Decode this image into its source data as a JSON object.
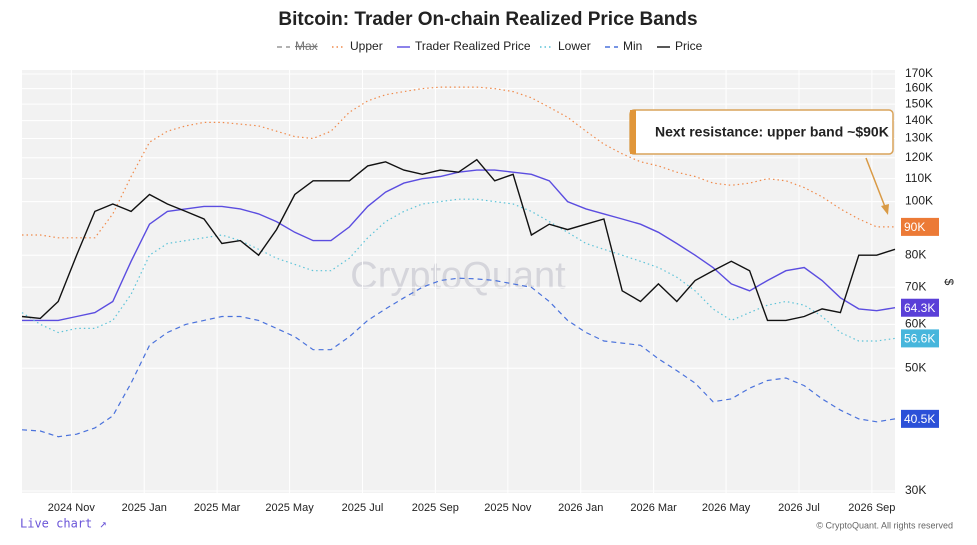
{
  "chart_data": {
    "type": "line",
    "title": "Bitcoin: Trader On-chain Realized Price Bands",
    "watermark": "CryptoQuant",
    "y_axis_label": "$",
    "log_y": true,
    "grid": true,
    "annotation": "Next resistance: upper band ~$90K",
    "footer_link": "Live chart ↗",
    "copyright": "© CryptoQuant. All rights reserved",
    "xlim": [
      2024.72,
      2026.72
    ],
    "xticks": [
      {
        "value": 2024.833,
        "label": "2024 Nov"
      },
      {
        "value": 2025.0,
        "label": "2025 Jan"
      },
      {
        "value": 2025.167,
        "label": "2025 Mar"
      },
      {
        "value": 2025.333,
        "label": "2025 May"
      },
      {
        "value": 2025.5,
        "label": "2025 Jul"
      },
      {
        "value": 2025.667,
        "label": "2025 Sep"
      },
      {
        "value": 2025.833,
        "label": "2025 Nov"
      },
      {
        "value": 2026.0,
        "label": "2026 Jan"
      },
      {
        "value": 2026.167,
        "label": "2026 Mar"
      },
      {
        "value": 2026.333,
        "label": "2026 May"
      },
      {
        "value": 2026.5,
        "label": "2026 Jul"
      },
      {
        "value": 2026.667,
        "label": "2026 Sep"
      }
    ],
    "ylim": [
      30000,
      170000
    ],
    "yticks": [
      {
        "value": 30000,
        "label": "30K"
      },
      {
        "value": 50000,
        "label": "50K"
      },
      {
        "value": 60000,
        "label": "60K"
      },
      {
        "value": 70000,
        "label": "70K"
      },
      {
        "value": 80000,
        "label": "80K"
      },
      {
        "value": 100000,
        "label": "100K"
      },
      {
        "value": 110000,
        "label": "110K"
      },
      {
        "value": 120000,
        "label": "120K"
      },
      {
        "value": 130000,
        "label": "130K"
      },
      {
        "value": 140000,
        "label": "140K"
      },
      {
        "value": 150000,
        "label": "150K"
      },
      {
        "value": 160000,
        "label": "160K"
      },
      {
        "value": 170000,
        "label": "170K"
      }
    ],
    "x": [
      2024.72,
      2024.762,
      2024.803,
      2024.845,
      2024.887,
      2024.928,
      2024.97,
      2025.012,
      2025.053,
      2025.095,
      2025.137,
      2025.178,
      2025.22,
      2025.262,
      2025.303,
      2025.345,
      2025.387,
      2025.428,
      2025.47,
      2025.512,
      2025.553,
      2025.595,
      2025.637,
      2025.678,
      2025.72,
      2025.762,
      2025.803,
      2025.845,
      2025.887,
      2025.928,
      2025.97,
      2026.012,
      2026.053,
      2026.095,
      2026.137,
      2026.178,
      2026.22,
      2026.262,
      2026.303,
      2026.345,
      2026.387,
      2026.428,
      2026.47,
      2026.512,
      2026.553,
      2026.595,
      2026.637,
      2026.678,
      2026.72
    ],
    "series": [
      {
        "name": "Max",
        "color": "#999999",
        "style": "dashed",
        "hidden": true
      },
      {
        "name": "Upper",
        "color": "#f08a4b",
        "style": "dotted",
        "end_label": "90K",
        "badge_color": "#ec7a36",
        "values": [
          87000,
          87000,
          86000,
          86000,
          86000,
          95000,
          111000,
          128000,
          134000,
          137000,
          139000,
          139000,
          138000,
          137000,
          134000,
          131000,
          130000,
          134000,
          145000,
          152000,
          156000,
          158000,
          160000,
          161000,
          161000,
          161000,
          160000,
          158000,
          154000,
          148000,
          142000,
          134000,
          127000,
          122000,
          118000,
          116000,
          113000,
          111000,
          108000,
          107000,
          108000,
          110000,
          109000,
          106000,
          102000,
          97000,
          93000,
          90000,
          90000
        ]
      },
      {
        "name": "Trader Realized Price",
        "color": "#5b4de0",
        "style": "solid",
        "end_label": "64.3K",
        "badge_color": "#5a3fd8",
        "values": [
          61000,
          61000,
          61000,
          62000,
          63000,
          66000,
          78000,
          91000,
          96000,
          97000,
          98000,
          98000,
          97000,
          95000,
          92000,
          88000,
          85000,
          85000,
          90000,
          98000,
          104000,
          108000,
          110000,
          111000,
          113000,
          114000,
          114000,
          113000,
          112000,
          109000,
          100000,
          97000,
          95000,
          93000,
          91000,
          88000,
          84000,
          80000,
          76000,
          71000,
          69000,
          72000,
          75000,
          76000,
          72000,
          67000,
          64000,
          63500,
          64300
        ]
      },
      {
        "name": "Lower",
        "color": "#5cc3d8",
        "style": "dotted",
        "end_label": "56.6K",
        "badge_color": "#47b6dc",
        "values": [
          63000,
          60000,
          58000,
          59000,
          59000,
          61000,
          68000,
          80000,
          84000,
          85000,
          86000,
          87000,
          85000,
          82000,
          79000,
          77000,
          75000,
          75000,
          79000,
          86000,
          92000,
          96000,
          99000,
          100000,
          101000,
          101000,
          100000,
          99000,
          96000,
          92000,
          88000,
          84000,
          82000,
          80000,
          78000,
          76000,
          73000,
          69000,
          64000,
          61000,
          63000,
          65000,
          66000,
          65000,
          62000,
          58000,
          56000,
          56000,
          56600
        ]
      },
      {
        "name": "Min",
        "color": "#4a72dc",
        "style": "dashed",
        "end_label": "40.5K",
        "badge_color": "#2b50d8",
        "values": [
          38700,
          38500,
          37600,
          38000,
          39000,
          41000,
          47000,
          55000,
          58000,
          60000,
          61000,
          62000,
          62000,
          61000,
          59000,
          57000,
          54000,
          54000,
          57000,
          61000,
          64000,
          67000,
          70000,
          72000,
          72700,
          72500,
          72000,
          71000,
          70000,
          66000,
          61000,
          58000,
          56000,
          55500,
          55000,
          52000,
          49500,
          47000,
          43500,
          44000,
          46000,
          47500,
          48000,
          46500,
          44000,
          42000,
          40500,
          40000,
          40500
        ]
      },
      {
        "name": "Price",
        "color": "#111111",
        "style": "solid",
        "values": [
          62000,
          61500,
          66000,
          80000,
          96000,
          99000,
          96000,
          103000,
          99000,
          96000,
          93000,
          84000,
          85000,
          80000,
          89000,
          103000,
          109000,
          109000,
          109000,
          116000,
          118000,
          114000,
          112000,
          114000,
          113000,
          119000,
          109000,
          112000,
          87000,
          91000,
          89000,
          91000,
          93000,
          69000,
          66000,
          71000,
          66000,
          72000,
          75000,
          78000,
          75000,
          61000,
          61000,
          62000,
          64000,
          63000,
          80000,
          80000,
          82000
        ]
      }
    ]
  }
}
